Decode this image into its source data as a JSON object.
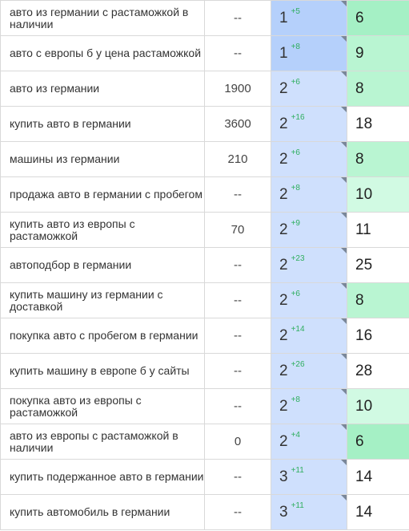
{
  "rows": [
    {
      "keyword": "авто из германии с растаможкой в наличии",
      "volume": "--",
      "pos": "1",
      "delta": "+5",
      "cur": "6",
      "pos_shade": "dark",
      "cur_shade": "g1"
    },
    {
      "keyword": "авто с европы б у цена растаможкой",
      "volume": "--",
      "pos": "1",
      "delta": "+8",
      "cur": "9",
      "pos_shade": "dark",
      "cur_shade": "g2"
    },
    {
      "keyword": "авто из германии",
      "volume": "1900",
      "pos": "2",
      "delta": "+6",
      "cur": "8",
      "pos_shade": "light",
      "cur_shade": "g2"
    },
    {
      "keyword": "купить авто в германии",
      "volume": "3600",
      "pos": "2",
      "delta": "+16",
      "cur": "18",
      "pos_shade": "light",
      "cur_shade": "w"
    },
    {
      "keyword": "машины из германии",
      "volume": "210",
      "pos": "2",
      "delta": "+6",
      "cur": "8",
      "pos_shade": "light",
      "cur_shade": "g2"
    },
    {
      "keyword": "продажа авто в германии с пробегом",
      "volume": "--",
      "pos": "2",
      "delta": "+8",
      "cur": "10",
      "pos_shade": "light",
      "cur_shade": "g3"
    },
    {
      "keyword": "купить авто из европы с растаможкой",
      "volume": "70",
      "pos": "2",
      "delta": "+9",
      "cur": "11",
      "pos_shade": "light",
      "cur_shade": "w"
    },
    {
      "keyword": "автоподбор в германии",
      "volume": "--",
      "pos": "2",
      "delta": "+23",
      "cur": "25",
      "pos_shade": "light",
      "cur_shade": "w"
    },
    {
      "keyword": "купить машину из германии с доставкой",
      "volume": "--",
      "pos": "2",
      "delta": "+6",
      "cur": "8",
      "pos_shade": "light",
      "cur_shade": "g2"
    },
    {
      "keyword": "покупка авто с пробегом в германии",
      "volume": "--",
      "pos": "2",
      "delta": "+14",
      "cur": "16",
      "pos_shade": "light",
      "cur_shade": "w"
    },
    {
      "keyword": "купить машину в европе б у сайты",
      "volume": "--",
      "pos": "2",
      "delta": "+26",
      "cur": "28",
      "pos_shade": "light",
      "cur_shade": "w"
    },
    {
      "keyword": "покупка авто из европы с растаможкой",
      "volume": "--",
      "pos": "2",
      "delta": "+8",
      "cur": "10",
      "pos_shade": "light",
      "cur_shade": "g3"
    },
    {
      "keyword": "авто из европы с растаможкой в наличии",
      "volume": "0",
      "pos": "2",
      "delta": "+4",
      "cur": "6",
      "pos_shade": "light",
      "cur_shade": "g1"
    },
    {
      "keyword": "купить подержанное авто в германии",
      "volume": "--",
      "pos": "3",
      "delta": "+11",
      "cur": "14",
      "pos_shade": "light",
      "cur_shade": "w"
    },
    {
      "keyword": "купить автомобиль в германии",
      "volume": "--",
      "pos": "3",
      "delta": "+11",
      "cur": "14",
      "pos_shade": "light",
      "cur_shade": "w"
    }
  ]
}
